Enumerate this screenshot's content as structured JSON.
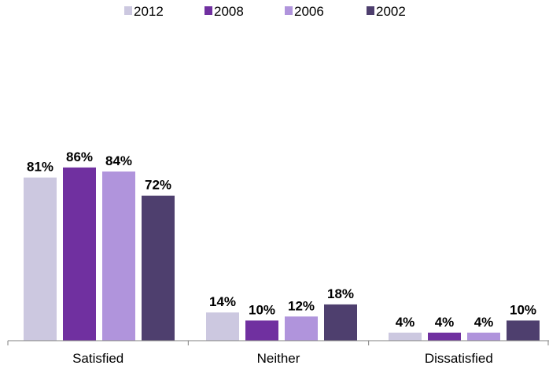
{
  "chart_data": {
    "type": "bar",
    "title": "",
    "xlabel": "",
    "ylabel": "",
    "categories": [
      "Satisfied",
      "Neither",
      "Dissatisfied"
    ],
    "series": [
      {
        "name": "2012",
        "values": [
          81,
          14,
          4
        ],
        "labels": [
          "81%",
          "14%",
          "4%"
        ],
        "color": "#ccc8e0"
      },
      {
        "name": "2008",
        "values": [
          86,
          10,
          4
        ],
        "labels": [
          "86%",
          "10%",
          "4%"
        ],
        "color": "#7030a0"
      },
      {
        "name": "2006",
        "values": [
          84,
          12,
          4
        ],
        "labels": [
          "84%",
          "12%",
          "4%"
        ],
        "color": "#b094dc"
      },
      {
        "name": "2002",
        "values": [
          72,
          18,
          10
        ],
        "labels": [
          "72%",
          "18%",
          "10%"
        ],
        "color": "#4e3f6e"
      }
    ],
    "ylim": [
      0,
      100
    ],
    "unit": "%",
    "grid": false,
    "legend_position": "top-center",
    "axis_color": "#808080"
  }
}
